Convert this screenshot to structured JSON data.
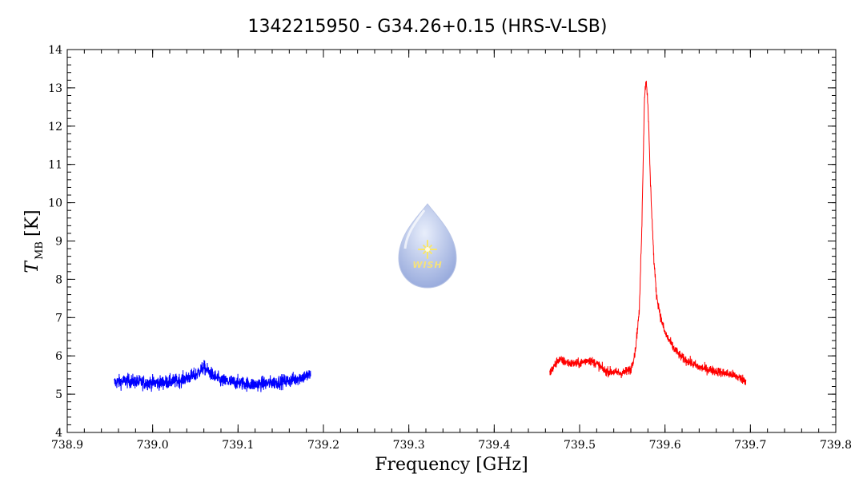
{
  "chart_data": {
    "type": "line",
    "title": "1342215950 - G34.26+0.15 (HRS-V-LSB)",
    "xlabel": "Frequency [GHz]",
    "ylabel": {
      "symbol": "T",
      "subscript": "MB",
      "unit": "[K]"
    },
    "xlim": [
      738.9,
      739.8
    ],
    "ylim": [
      4,
      14
    ],
    "x_ticks": [
      "738.9",
      "739.0",
      "739.1",
      "739.2",
      "739.3",
      "739.4",
      "739.5",
      "739.6",
      "739.7",
      "739.8"
    ],
    "y_ticks": [
      "4",
      "5",
      "6",
      "7",
      "8",
      "9",
      "10",
      "11",
      "12",
      "13",
      "14"
    ],
    "grid": false,
    "series": [
      {
        "color": "#0000ff",
        "points": [
          [
            738.955,
            5.3
          ],
          [
            738.97,
            5.35
          ],
          [
            738.99,
            5.3
          ],
          [
            739.01,
            5.3
          ],
          [
            739.03,
            5.35
          ],
          [
            739.05,
            5.5
          ],
          [
            739.06,
            5.7
          ],
          [
            739.07,
            5.5
          ],
          [
            739.08,
            5.35
          ],
          [
            739.1,
            5.3
          ],
          [
            739.12,
            5.25
          ],
          [
            739.14,
            5.3
          ],
          [
            739.16,
            5.35
          ],
          [
            739.175,
            5.45
          ],
          [
            739.185,
            5.5
          ]
        ],
        "noise": 0.18
      },
      {
        "color": "#ff0000",
        "points": [
          [
            739.465,
            5.55
          ],
          [
            739.475,
            5.9
          ],
          [
            739.49,
            5.8
          ],
          [
            739.5,
            5.8
          ],
          [
            739.51,
            5.9
          ],
          [
            739.52,
            5.8
          ],
          [
            739.53,
            5.6
          ],
          [
            739.55,
            5.55
          ],
          [
            739.56,
            5.65
          ],
          [
            739.565,
            6.1
          ],
          [
            739.57,
            7.2
          ],
          [
            739.573,
            9.5
          ],
          [
            739.576,
            12.8
          ],
          [
            739.578,
            13.2
          ],
          [
            739.58,
            12.6
          ],
          [
            739.583,
            10.5
          ],
          [
            739.587,
            8.5
          ],
          [
            739.59,
            7.6
          ],
          [
            739.595,
            7.0
          ],
          [
            739.6,
            6.6
          ],
          [
            739.61,
            6.2
          ],
          [
            739.62,
            5.95
          ],
          [
            739.64,
            5.7
          ],
          [
            739.66,
            5.6
          ],
          [
            739.68,
            5.5
          ],
          [
            739.695,
            5.35
          ]
        ],
        "noise": 0.12
      }
    ]
  },
  "logo": {
    "text": "WISH",
    "colors": {
      "drop_top": "#e8eefb",
      "drop_bottom": "#8fa3d9",
      "star": "#f8e66a"
    }
  }
}
